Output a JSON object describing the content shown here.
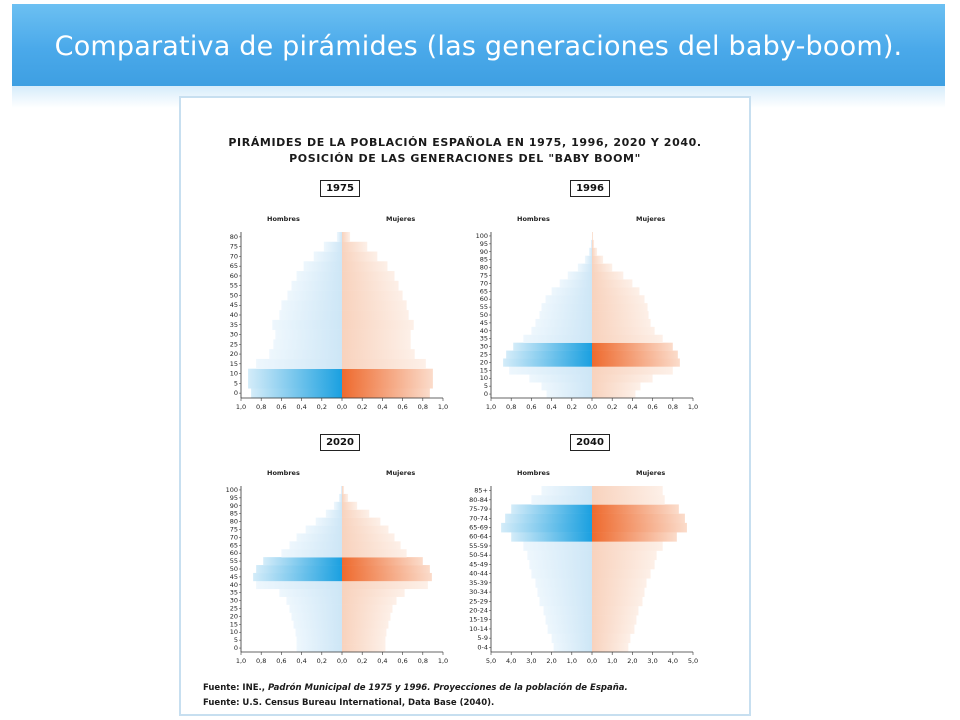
{
  "slide": {
    "title": "Comparativa de pirámides (las generaciones del baby-boom)."
  },
  "figure": {
    "title_line1": "PIRÁMIDES DE LA POBLACIÓN ESPAÑOLA EN 1975, 1996, 2020 Y 2040.",
    "title_line2": "POSICIÓN DE LAS GENERACIONES DEL \"BABY BOOM\"",
    "source_line1_prefix": "Fuente: INE., ",
    "source_line1_italic": "Padrón Municipal de 1975 y 1996. Proyecciones de la población de España.",
    "source_line2": "Fuente: U.S. Census Bureau International, Data Base (2040)."
  },
  "colors": {
    "banner": "#4aa9ea",
    "men_light": "#cde6f6",
    "men_dark": "#1aa0e0",
    "women_light": "#f8d2bd",
    "women_dark": "#ee6a2e"
  },
  "chart_data": [
    {
      "type": "bar",
      "subtype": "population-pyramid",
      "title": "1975",
      "left_label": "Hombres",
      "right_label": "Mujeres",
      "age_ticks": [
        "0",
        "5",
        "10",
        "15",
        "20",
        "25",
        "30",
        "35",
        "40",
        "45",
        "50",
        "55",
        "60",
        "65",
        "70",
        "75",
        "80"
      ],
      "x_ticks": [
        "1,0",
        "0,8",
        "0,6",
        "0,4",
        "0,2",
        "0,0",
        "0,2",
        "0,4",
        "0,6",
        "0,8",
        "1,0"
      ],
      "xlim": [
        -1.0,
        1.0
      ],
      "baby_boom_ages": [
        0,
        15
      ],
      "men": [
        0.9,
        0.93,
        0.93,
        0.85,
        0.72,
        0.68,
        0.66,
        0.69,
        0.62,
        0.6,
        0.54,
        0.5,
        0.45,
        0.38,
        0.28,
        0.18,
        0.05
      ],
      "women": [
        0.87,
        0.9,
        0.9,
        0.83,
        0.72,
        0.68,
        0.68,
        0.71,
        0.66,
        0.64,
        0.6,
        0.56,
        0.52,
        0.45,
        0.35,
        0.25,
        0.08
      ]
    },
    {
      "type": "bar",
      "subtype": "population-pyramid",
      "title": "1996",
      "left_label": "Hombres",
      "right_label": "Mujeres",
      "age_ticks": [
        "0",
        "5",
        "10",
        "15",
        "20",
        "25",
        "30",
        "35",
        "40",
        "45",
        "50",
        "55",
        "60",
        "65",
        "70",
        "75",
        "80",
        "85",
        "90",
        "95",
        "100"
      ],
      "x_ticks": [
        "1,0",
        "0,8",
        "0,6",
        "0,4",
        "0,2",
        "0,0",
        "0,2",
        "0,4",
        "0,6",
        "0,8",
        "1,0"
      ],
      "xlim": [
        -1.0,
        1.0
      ],
      "baby_boom_ages": [
        20,
        35
      ],
      "men": [
        0.45,
        0.5,
        0.62,
        0.82,
        0.88,
        0.85,
        0.78,
        0.68,
        0.6,
        0.56,
        0.52,
        0.5,
        0.46,
        0.4,
        0.32,
        0.24,
        0.14,
        0.07,
        0.03,
        0.01,
        0.0
      ],
      "women": [
        0.43,
        0.48,
        0.6,
        0.8,
        0.87,
        0.85,
        0.8,
        0.7,
        0.62,
        0.58,
        0.56,
        0.55,
        0.52,
        0.47,
        0.4,
        0.31,
        0.2,
        0.11,
        0.05,
        0.02,
        0.01
      ]
    },
    {
      "type": "bar",
      "subtype": "population-pyramid",
      "title": "2020",
      "left_label": "Hombres",
      "right_label": "Mujeres",
      "age_ticks": [
        "0",
        "5",
        "10",
        "15",
        "20",
        "25",
        "30",
        "35",
        "40",
        "45",
        "50",
        "55",
        "60",
        "65",
        "70",
        "75",
        "80",
        "85",
        "90",
        "95",
        "100"
      ],
      "x_ticks": [
        "1,0",
        "0,8",
        "0,6",
        "0,4",
        "0,2",
        "0,0",
        "0,2",
        "0,4",
        "0,6",
        "0,8",
        "1,0"
      ],
      "xlim": [
        -1.0,
        1.0
      ],
      "baby_boom_ages": [
        45,
        60
      ],
      "men": [
        0.45,
        0.45,
        0.46,
        0.48,
        0.5,
        0.52,
        0.55,
        0.62,
        0.85,
        0.88,
        0.85,
        0.78,
        0.6,
        0.52,
        0.45,
        0.36,
        0.26,
        0.16,
        0.08,
        0.03,
        0.01
      ],
      "women": [
        0.43,
        0.43,
        0.44,
        0.46,
        0.48,
        0.5,
        0.54,
        0.62,
        0.85,
        0.89,
        0.87,
        0.8,
        0.64,
        0.58,
        0.52,
        0.46,
        0.38,
        0.27,
        0.15,
        0.06,
        0.02
      ]
    },
    {
      "type": "bar",
      "subtype": "population-pyramid",
      "title": "2040",
      "left_label": "Hombres",
      "right_label": "Mujeres",
      "age_ticks": [
        "0-4",
        "5-9",
        "10-14",
        "15-19",
        "20-24",
        "25-29",
        "30-34",
        "35-39",
        "40-44",
        "45-49",
        "50-54",
        "55-59",
        "60-64",
        "65-69",
        "70-74",
        "75-79",
        "80-84",
        "85+"
      ],
      "x_ticks": [
        "5,0",
        "4,0",
        "3,0",
        "2,0",
        "1,0",
        "0,0",
        "1,0",
        "2,0",
        "3,0",
        "4,0",
        "5,0"
      ],
      "xlim": [
        -5.0,
        5.0
      ],
      "baby_boom_ages": [
        60,
        80
      ],
      "men": [
        1.9,
        2.0,
        2.2,
        2.3,
        2.4,
        2.6,
        2.7,
        2.8,
        3.0,
        3.1,
        3.2,
        3.4,
        4.0,
        4.5,
        4.3,
        4.0,
        3.0,
        2.5
      ],
      "women": [
        1.8,
        1.9,
        2.1,
        2.2,
        2.3,
        2.5,
        2.6,
        2.7,
        2.9,
        3.1,
        3.2,
        3.5,
        4.2,
        4.7,
        4.6,
        4.3,
        3.6,
        3.5
      ]
    }
  ]
}
